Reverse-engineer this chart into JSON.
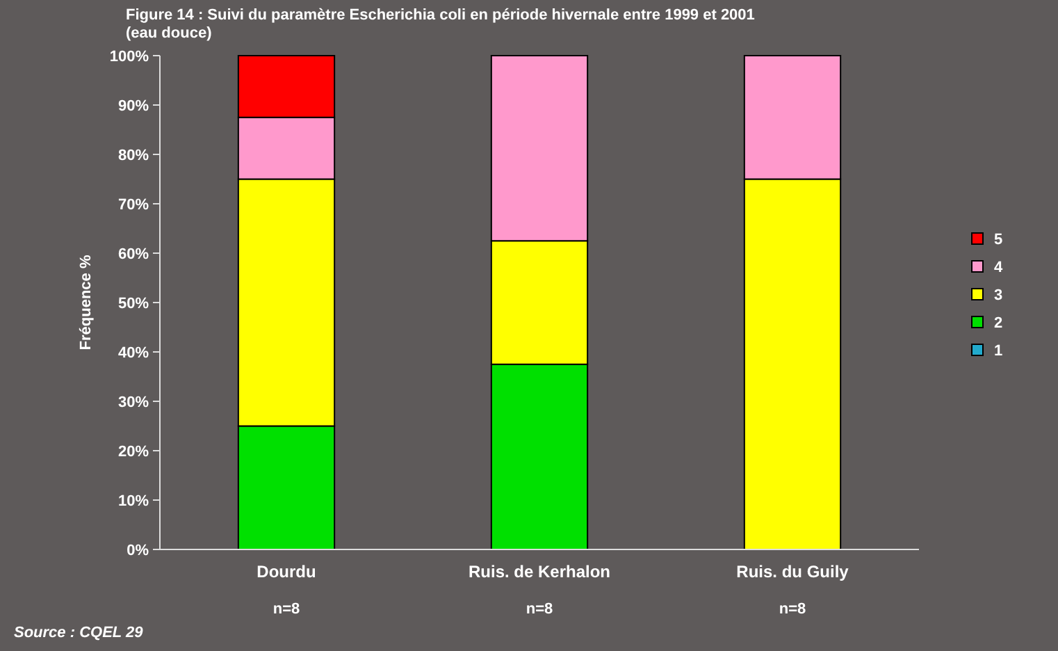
{
  "chart_data": {
    "type": "bar",
    "stacked": true,
    "title": "Figure 14 : Suivi du paramètre Escherichia coli en période hivernale entre 1999 et 2001\n(eau douce)",
    "ylabel": "Fréquence %",
    "categories": [
      "Dourdu",
      "Ruis. de Kerhalon",
      "Ruis. du Guily"
    ],
    "series": [
      {
        "name": "1",
        "color": "#22aacc",
        "values": [
          0,
          0,
          0
        ]
      },
      {
        "name": "2",
        "color": "#00e000",
        "values": [
          25,
          37.5,
          0
        ]
      },
      {
        "name": "3",
        "color": "#ffff00",
        "values": [
          50,
          25,
          75
        ]
      },
      {
        "name": "4",
        "color": "#ff99cc",
        "values": [
          12.5,
          37.5,
          25
        ]
      },
      {
        "name": "5",
        "color": "#ff0000",
        "values": [
          12.5,
          0,
          0
        ]
      }
    ],
    "ylim": [
      0,
      100
    ],
    "yticks": [
      {
        "value": 0,
        "label": "0%"
      },
      {
        "value": 10,
        "label": "10%"
      },
      {
        "value": 20,
        "label": "20%"
      },
      {
        "value": 30,
        "label": "30%"
      },
      {
        "value": 40,
        "label": "40%"
      },
      {
        "value": 50,
        "label": "50%"
      },
      {
        "value": 60,
        "label": "60%"
      },
      {
        "value": 70,
        "label": "70%"
      },
      {
        "value": 80,
        "label": "80%"
      },
      {
        "value": 90,
        "label": "90%"
      },
      {
        "value": 100,
        "label": "100%"
      }
    ],
    "grid": false,
    "legend": "right",
    "annotations": [
      "n=8",
      "n=8",
      "n=8",
      "Source : CQEL 29"
    ]
  }
}
